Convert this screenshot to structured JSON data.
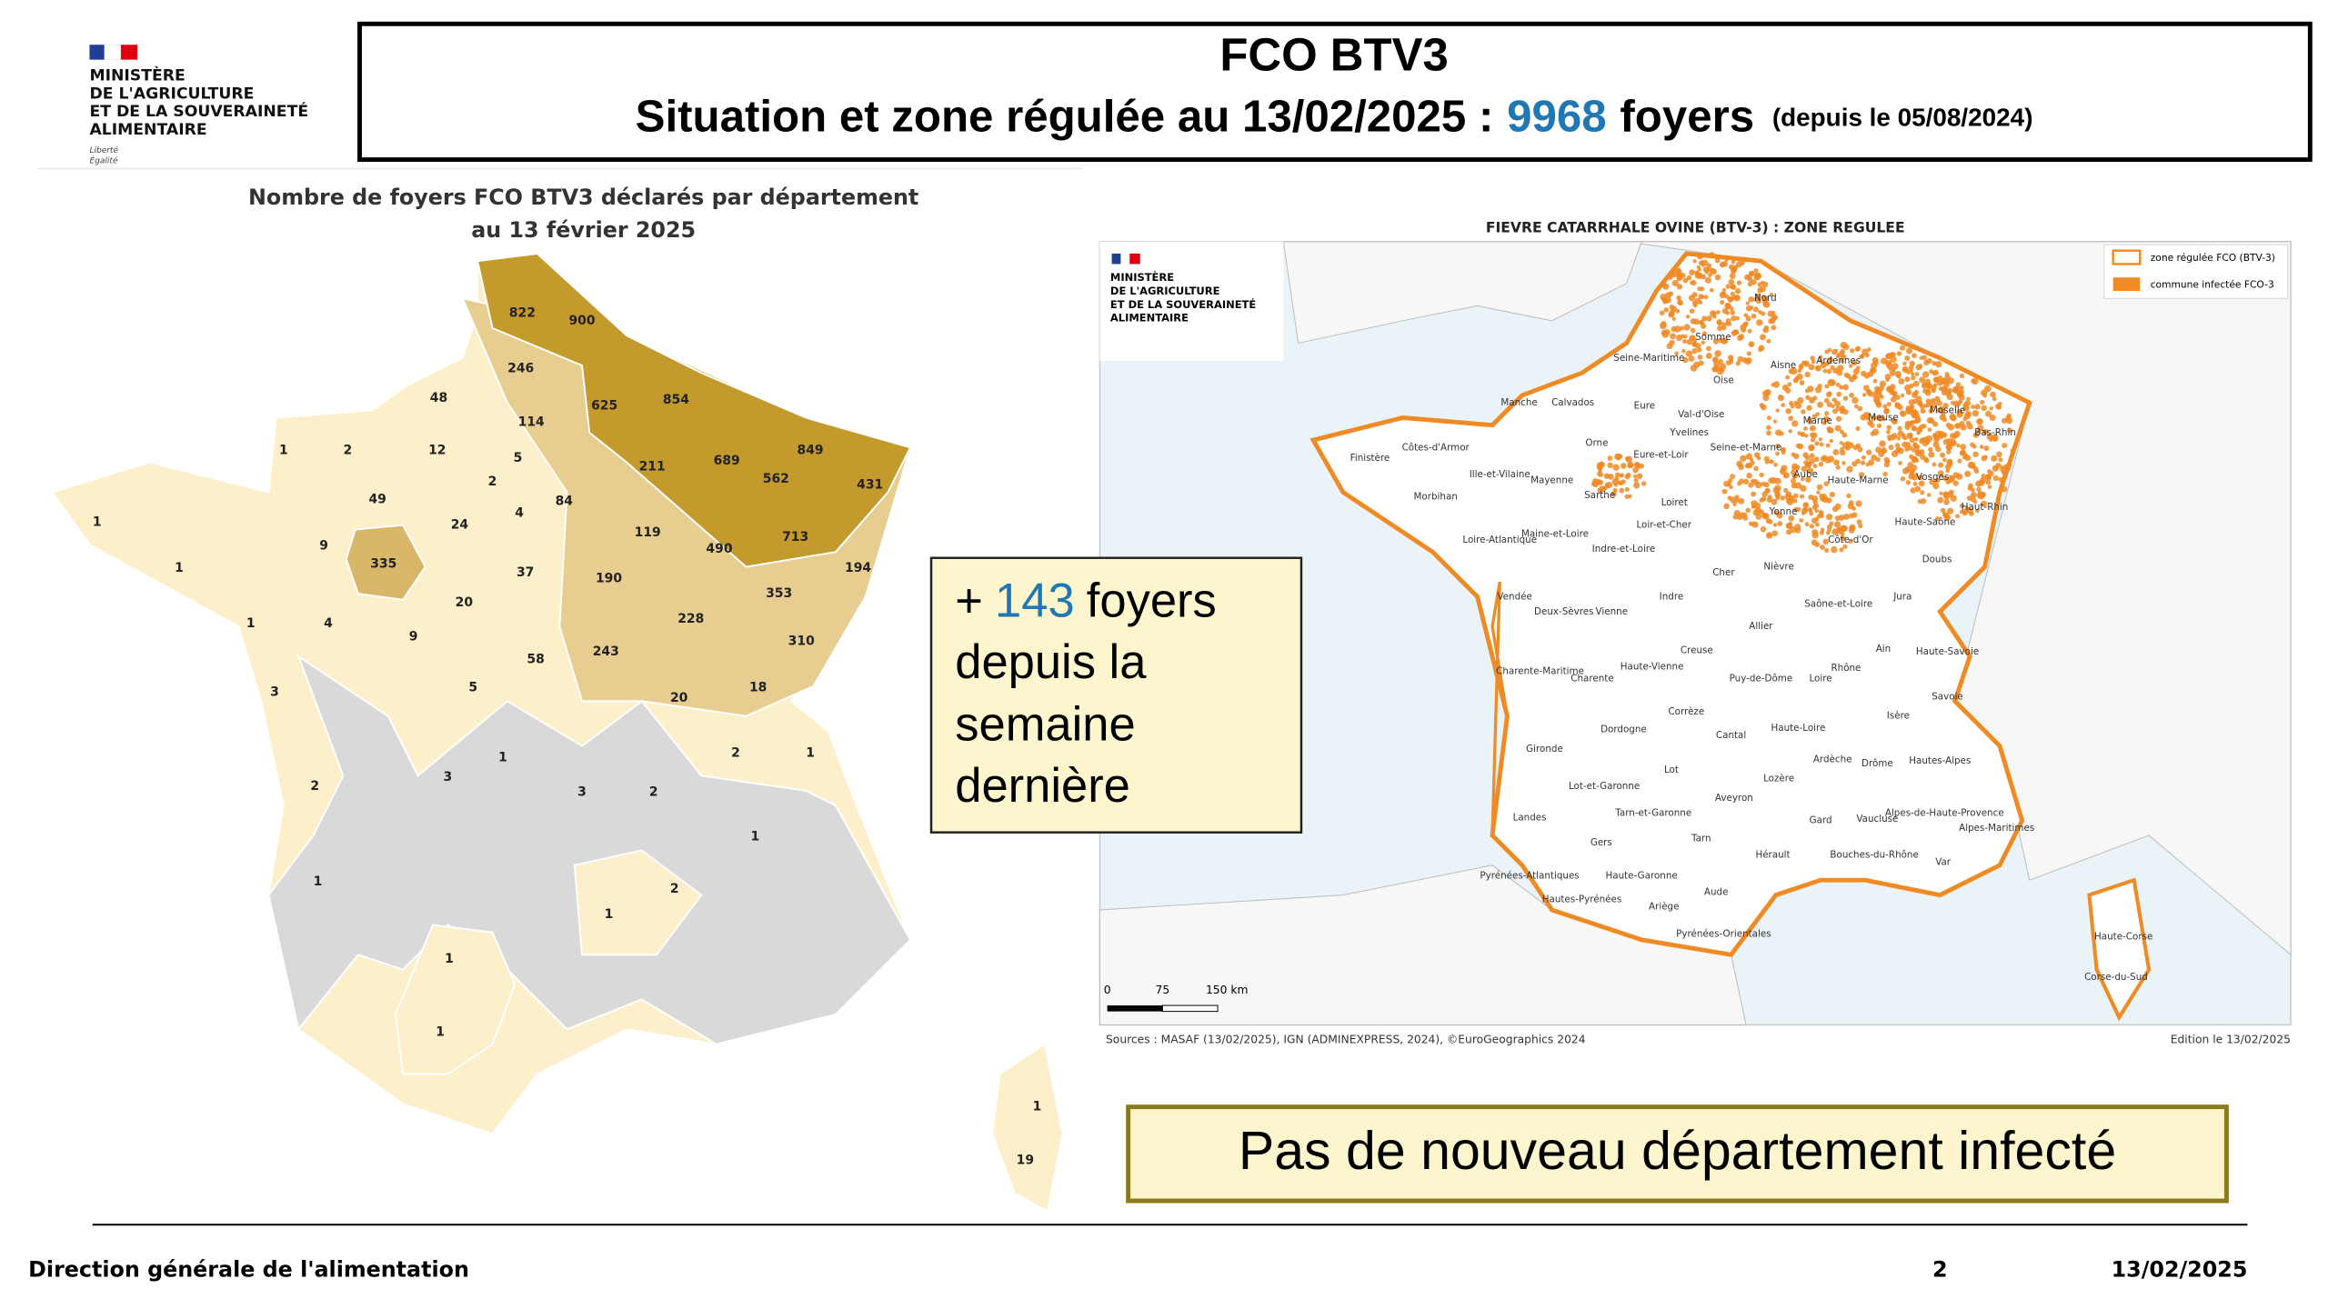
{
  "logo": {
    "lines": [
      "MINISTÈRE",
      "DE L'AGRICULTURE",
      "ET DE LA SOUVERAINETÉ",
      "ALIMENTAIRE"
    ],
    "motto": [
      "Liberté",
      "Égalité"
    ]
  },
  "header": {
    "title": "FCO BTV3",
    "subtitle": "Situation et zone régulée au 13/02/2025 :",
    "count": 9968,
    "unit": "foyers",
    "since": "(depuis le 05/08/2024)"
  },
  "left_map": {
    "title": [
      "Nombre de foyers FCO BTV3 déclarés par département",
      "au 13 février 2025"
    ],
    "department_counts": [
      822,
      900,
      246,
      48,
      625,
      854,
      114,
      1,
      2,
      12,
      5,
      849,
      211,
      689,
      562,
      431,
      2,
      49,
      84,
      4,
      24,
      1,
      713,
      119,
      490,
      9,
      335,
      1,
      37,
      190,
      194,
      353,
      20,
      1,
      4,
      9,
      228,
      310,
      243,
      58,
      18,
      5,
      20,
      3,
      2,
      1,
      1,
      3,
      2,
      3,
      2,
      1,
      1,
      2,
      1,
      1,
      1,
      1,
      19
    ]
  },
  "callout": {
    "prefix": "+",
    "count": 143,
    "unit": "foyers",
    "lines": [
      "depuis la",
      "semaine",
      "dernière"
    ]
  },
  "right_map": {
    "title": "FIEVRE CATARRHALE OVINE (BTV-3) : ZONE REGULEE",
    "logo": [
      "MINISTÈRE",
      "DE L'AGRICULTURE",
      "ET DE LA SOUVERAINETÉ",
      "ALIMENTAIRE"
    ],
    "legend": [
      "zone régulée FCO (BTV-3)",
      "commune infectée FCO-3"
    ],
    "scale": [
      0,
      75,
      "150 km"
    ],
    "sources": "Sources : MASAF (13/02/2025), IGN (ADMINEXPRESS, 2024), ©EuroGeographics 2024",
    "edition": "Edition le 13/02/2025",
    "departments": [
      "Nord",
      "Somme",
      "Seine-Maritime",
      "Aisne",
      "Ardennes",
      "Oise",
      "Manche",
      "Calvados",
      "Eure",
      "Val-d'Oise",
      "Marne",
      "Meuse",
      "Moselle",
      "Bas-Rhin",
      "Orne",
      "Yvelines",
      "Côtes-d'Armor",
      "Finistère",
      "Eure-et-Loir",
      "Seine-et-Marne",
      "Aube",
      "Haute-Marne",
      "Vosges",
      "Haut-Rhin",
      "Ille-et-Vilaine",
      "Mayenne",
      "Sarthe",
      "Morbihan",
      "Loiret",
      "Yonne",
      "Loir-et-Cher",
      "Haute-Saône",
      "Doubs",
      "Côte-d'Or",
      "Loire-Atlantique",
      "Maine-et-Loire",
      "Indre-et-Loire",
      "Cher",
      "Nièvre",
      "Jura",
      "Vendée",
      "Deux-Sèvres",
      "Vienne",
      "Indre",
      "Saône-et-Loire",
      "Allier",
      "Ain",
      "Haute-Savoie",
      "Creuse",
      "Rhône",
      "Charente-Maritime",
      "Charente",
      "Haute-Vienne",
      "Puy-de-Dôme",
      "Loire",
      "Savoie",
      "Corrèze",
      "Isère",
      "Dordogne",
      "Cantal",
      "Haute-Loire",
      "Gironde",
      "Ardèche",
      "Drôme",
      "Hautes-Alpes",
      "Lot",
      "Lozère",
      "Lot-et-Garonne",
      "Aveyron",
      "Alpes-de-Haute-Provence",
      "Alpes-Maritimes",
      "Landes",
      "Tarn-et-Garonne",
      "Gard",
      "Vaucluse",
      "Gers",
      "Tarn",
      "Hérault",
      "Bouches-du-Rhône",
      "Var",
      "Pyrénées-Atlantiques",
      "Haute-Garonne",
      "Aude",
      "Hautes-Pyrénées",
      "Ariège",
      "Pyrénées-Orientales",
      "Haute-Corse",
      "Corse-du-Sud"
    ]
  },
  "banner": "Pas de nouveau département infecté",
  "footer": {
    "left": "Direction générale de l'alimentation",
    "page": 2,
    "date": "13/02/2025"
  }
}
